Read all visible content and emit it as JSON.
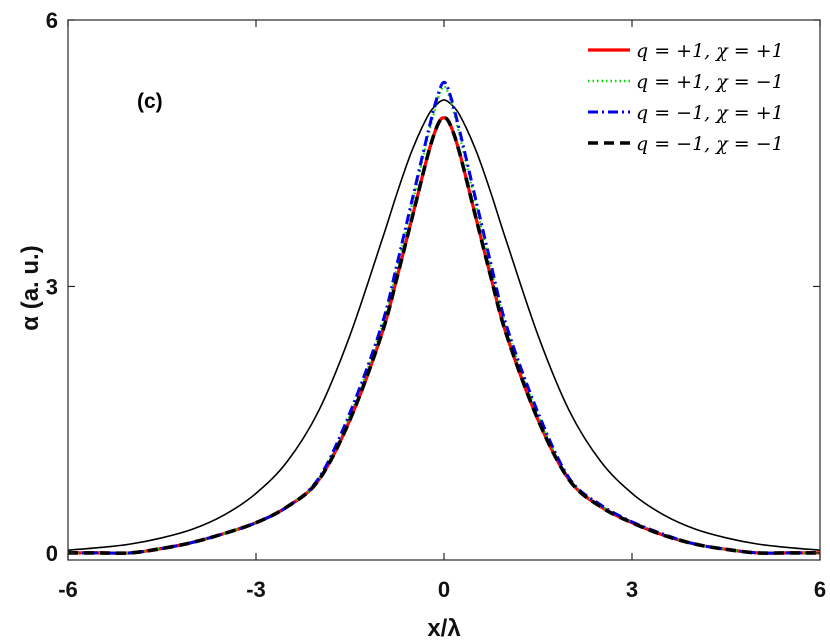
{
  "chart_data": {
    "type": "line",
    "panel_label": "(c)",
    "xlabel": "x/λ",
    "ylabel": "α (a. u.)",
    "xlim": [
      -6,
      6
    ],
    "ylim": [
      -0.08,
      6
    ],
    "xticks": [
      -6,
      -3,
      0,
      3,
      6
    ],
    "yticks": [
      0,
      3,
      6
    ],
    "xtick_labels": [
      "-6",
      "-3",
      "0",
      "3",
      "6"
    ],
    "ytick_labels": [
      "0",
      "3",
      "6"
    ],
    "grid": false,
    "legend_position": "top-right",
    "x": [
      -6,
      -5.5,
      -5,
      -4.5,
      -4,
      -3.5,
      -3,
      -2.5,
      -2,
      -1.5,
      -1,
      -0.75,
      -0.5,
      -0.25,
      -0.1,
      0,
      0.1,
      0.25,
      0.5,
      0.75,
      1,
      1.5,
      2,
      2.5,
      3,
      3.5,
      4,
      4.5,
      5,
      5.5,
      6
    ],
    "series": [
      {
        "name": "q = +1, χ = +1",
        "color": "#ff0000",
        "dash": "solid",
        "values": [
          0,
          0,
          0,
          0.05,
          0.12,
          0.22,
          0.34,
          0.52,
          0.82,
          1.5,
          2.45,
          3.1,
          3.8,
          4.5,
          4.82,
          4.9,
          4.82,
          4.5,
          3.8,
          3.1,
          2.45,
          1.5,
          0.82,
          0.52,
          0.34,
          0.2,
          0.1,
          0.04,
          0,
          0,
          0
        ]
      },
      {
        "name": "q = +1, χ = −1",
        "color": "#00dd00",
        "dash": "dotted",
        "values": [
          0,
          0,
          0,
          0.05,
          0.12,
          0.22,
          0.34,
          0.52,
          0.83,
          1.55,
          2.52,
          3.2,
          3.95,
          4.7,
          5.1,
          5.25,
          5.1,
          4.7,
          3.95,
          3.2,
          2.52,
          1.55,
          0.83,
          0.53,
          0.35,
          0.21,
          0.1,
          0.04,
          0,
          0,
          0
        ]
      },
      {
        "name": "q = −1, χ = +1",
        "color": "#0000ee",
        "dash": "dashdot",
        "values": [
          0,
          0,
          0,
          0.05,
          0.12,
          0.22,
          0.34,
          0.52,
          0.84,
          1.58,
          2.55,
          3.25,
          4.0,
          4.75,
          5.15,
          5.3,
          5.15,
          4.75,
          4.0,
          3.25,
          2.55,
          1.58,
          0.84,
          0.54,
          0.35,
          0.21,
          0.1,
          0.04,
          0,
          0,
          0
        ]
      },
      {
        "name": "q = −1, χ = −1",
        "color": "#000000",
        "dash": "dashed",
        "values": [
          0,
          0,
          0,
          0.05,
          0.12,
          0.22,
          0.34,
          0.52,
          0.82,
          1.5,
          2.45,
          3.1,
          3.8,
          4.5,
          4.82,
          4.9,
          4.82,
          4.5,
          3.8,
          3.1,
          2.45,
          1.5,
          0.82,
          0.52,
          0.34,
          0.2,
          0.1,
          0.04,
          0,
          0,
          0
        ]
      },
      {
        "name": "",
        "color": "#000000",
        "dash": "solid-thin",
        "values": [
          0.03,
          0.06,
          0.1,
          0.17,
          0.27,
          0.43,
          0.67,
          1.03,
          1.6,
          2.45,
          3.5,
          4.05,
          4.55,
          4.93,
          5.06,
          5.1,
          5.06,
          4.93,
          4.55,
          4.05,
          3.5,
          2.45,
          1.6,
          1.03,
          0.67,
          0.43,
          0.27,
          0.17,
          0.1,
          0.06,
          0.03
        ]
      }
    ]
  }
}
